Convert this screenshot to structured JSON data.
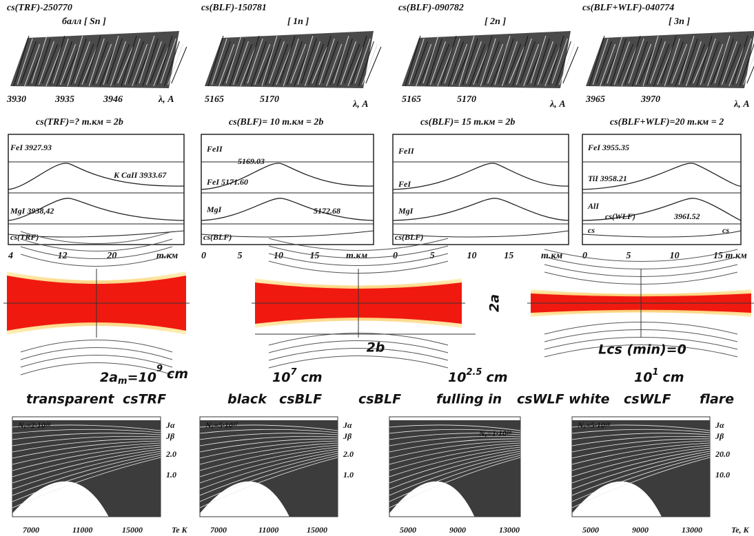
{
  "spectra": [
    {
      "title": "cs(TRF)-250770",
      "subtitle": "балл [ Sn ]",
      "ticks": [
        "3930",
        "3935",
        "3946"
      ],
      "axis": "λ, A"
    },
    {
      "title": "cs(BLF)-150781",
      "subtitle": "[ 1n ]",
      "ticks": [
        "5165",
        "5170"
      ],
      "axis": "λ, A"
    },
    {
      "title": "cs(BLF)-090782",
      "subtitle": "[ 2n ]",
      "ticks": [
        "5165",
        "5170"
      ],
      "axis": "λ, A"
    },
    {
      "title": "cs(BLF+WLF)-040774",
      "subtitle": "[ 3n ]",
      "ticks": [
        "3965",
        "3970"
      ],
      "axis": "λ, A"
    }
  ],
  "profiles": [
    {
      "title": "cs(TRF)=? т.км = 2b",
      "labels": [
        "FeI 3927.93",
        "K CaII 3933.67",
        "MgI 3938,42",
        "cs(TRF)"
      ],
      "ticks": [
        "4",
        "12",
        "20",
        "т.км"
      ]
    },
    {
      "title": "cs(BLF)= 10 т.км = 2b",
      "labels": [
        "FeII",
        "5169.03",
        "FeI 5171.60",
        "MgI",
        "5172.68",
        "cs(BLF)"
      ],
      "ticks": [
        "0",
        "5",
        "10",
        "15",
        "т.км"
      ]
    },
    {
      "title": "cs(BLF)= 15 т.км = 2b",
      "labels": [
        "FeII",
        "FeI",
        "MgI",
        "cs(BLF)"
      ],
      "ticks": [
        "0",
        "5",
        "10",
        "15",
        "т.км"
      ]
    },
    {
      "title": "cs(BLF+WLF)=20 т.км = 2",
      "labels": [
        "FeI 3955.35",
        "TiI 3958.21",
        "AlI",
        "396I.52",
        "cs(WLF)",
        "cs",
        "cs"
      ],
      "ticks": [
        "0",
        "5",
        "10",
        "15 т.км"
      ]
    }
  ],
  "diagrams": {
    "thickness": "2a",
    "length": "2b",
    "limit": "Lcs (min)=0"
  },
  "scales": [
    {
      "base": "2a",
      "sub": "m",
      "mid": "=10",
      "sup": "9",
      "unit": "cm"
    },
    {
      "mid": "10",
      "sup": "7",
      "unit": "cm"
    },
    {
      "mid": "10",
      "sup": "2.5",
      "unit": "cm"
    },
    {
      "mid": "10",
      "sup": "1",
      "unit": "cm"
    }
  ],
  "types": [
    "transparent",
    "csTRF",
    "black",
    "csBLF",
    "csBLF",
    "fulling in",
    "csWLF",
    "white",
    "csWLF",
    "flare"
  ],
  "plots": [
    {
      "density": "Nₑ=2·10¹⁸",
      "ratio_top": "Jα",
      "ratio_bottom": "Jβ",
      "yticks": [
        "2.0",
        "1.0"
      ],
      "xticks": [
        "7000",
        "11000",
        "15000",
        "Te K"
      ]
    },
    {
      "density": "Nₑ=5·10¹⁷",
      "ratio_top": "Jα",
      "ratio_bottom": "Jβ",
      "yticks": [
        "2.0",
        "1.0"
      ],
      "xticks": [
        "7000",
        "11000",
        "15000"
      ]
    },
    {
      "density": "Nₑ=1·10¹⁸",
      "ratio_top": "",
      "ratio_bottom": "",
      "yticks": [],
      "xticks": [
        "5000",
        "9000",
        "13000"
      ]
    },
    {
      "density": "Nₑ=5·10¹⁸",
      "ratio_top": "Jα",
      "ratio_bottom": "Jβ",
      "yticks": [
        "20.0",
        "10.0"
      ],
      "xticks": [
        "5000",
        "9000",
        "13000",
        "Te, K"
      ]
    }
  ]
}
